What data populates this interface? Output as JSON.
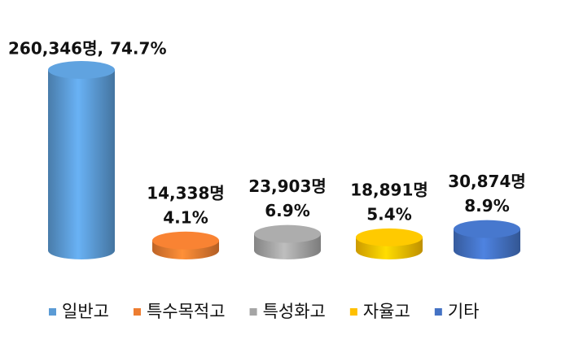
{
  "chart_data": {
    "type": "bar",
    "categories": [
      "일반고",
      "특수목적고",
      "특성화고",
      "자율고",
      "기타"
    ],
    "values": [
      260346,
      14338,
      23903,
      18891,
      30874
    ],
    "value_labels": [
      "260,346명,",
      "14,338명",
      "23,903명",
      "18,891명",
      "30,874명"
    ],
    "shares": [
      74.7,
      4.1,
      6.9,
      5.4,
      8.9
    ],
    "share_labels": [
      "74.7%",
      "4.1%",
      "6.9%",
      "5.4%",
      "8.9%"
    ],
    "colors": [
      "#5b9bd5",
      "#ed7d31",
      "#a5a5a5",
      "#ffc000",
      "#4472c4"
    ],
    "legend": "bottom"
  }
}
